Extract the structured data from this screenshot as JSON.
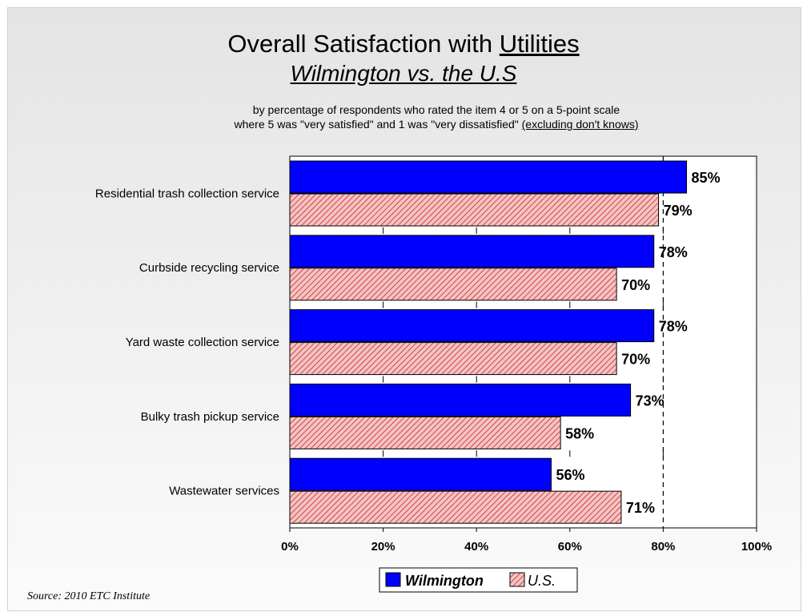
{
  "title_prefix": "Overall Satisfaction with ",
  "title_emphasis": "Utilities",
  "subtitle": "Wilmington vs. the U.S",
  "description_line1": "by percentage of respondents who rated the item 4 or 5 on a 5-point scale",
  "description_line2": "where 5 was \"very satisfied\" and 1 was \"very dissatisfied\" ",
  "description_note": "(excluding don't knows)",
  "source": "Source:  2010 ETC Institute",
  "colors": {
    "wilmington": "#0000ff",
    "us_fill": "#f3c4c4",
    "us_stripe": "#cc2222"
  },
  "chart_data": {
    "type": "bar",
    "orientation": "horizontal",
    "categories": [
      "Residential trash collection service",
      "Curbside recycling service",
      "Yard waste collection service",
      "Bulky trash pickup service",
      "Wastewater services"
    ],
    "series": [
      {
        "name": "Wilmington",
        "values": [
          85,
          78,
          78,
          73,
          56
        ],
        "labels": [
          "85%",
          "78%",
          "78%",
          "73%",
          "56%"
        ]
      },
      {
        "name": "U.S.",
        "values": [
          79,
          70,
          70,
          58,
          71
        ],
        "labels": [
          "79%",
          "70%",
          "70%",
          "58%",
          "71%"
        ]
      }
    ],
    "xlim": [
      0,
      100
    ],
    "x_ticks": [
      "0%",
      "20%",
      "40%",
      "60%",
      "80%",
      "100%"
    ],
    "reference_line": 80,
    "legend_position": "bottom"
  }
}
